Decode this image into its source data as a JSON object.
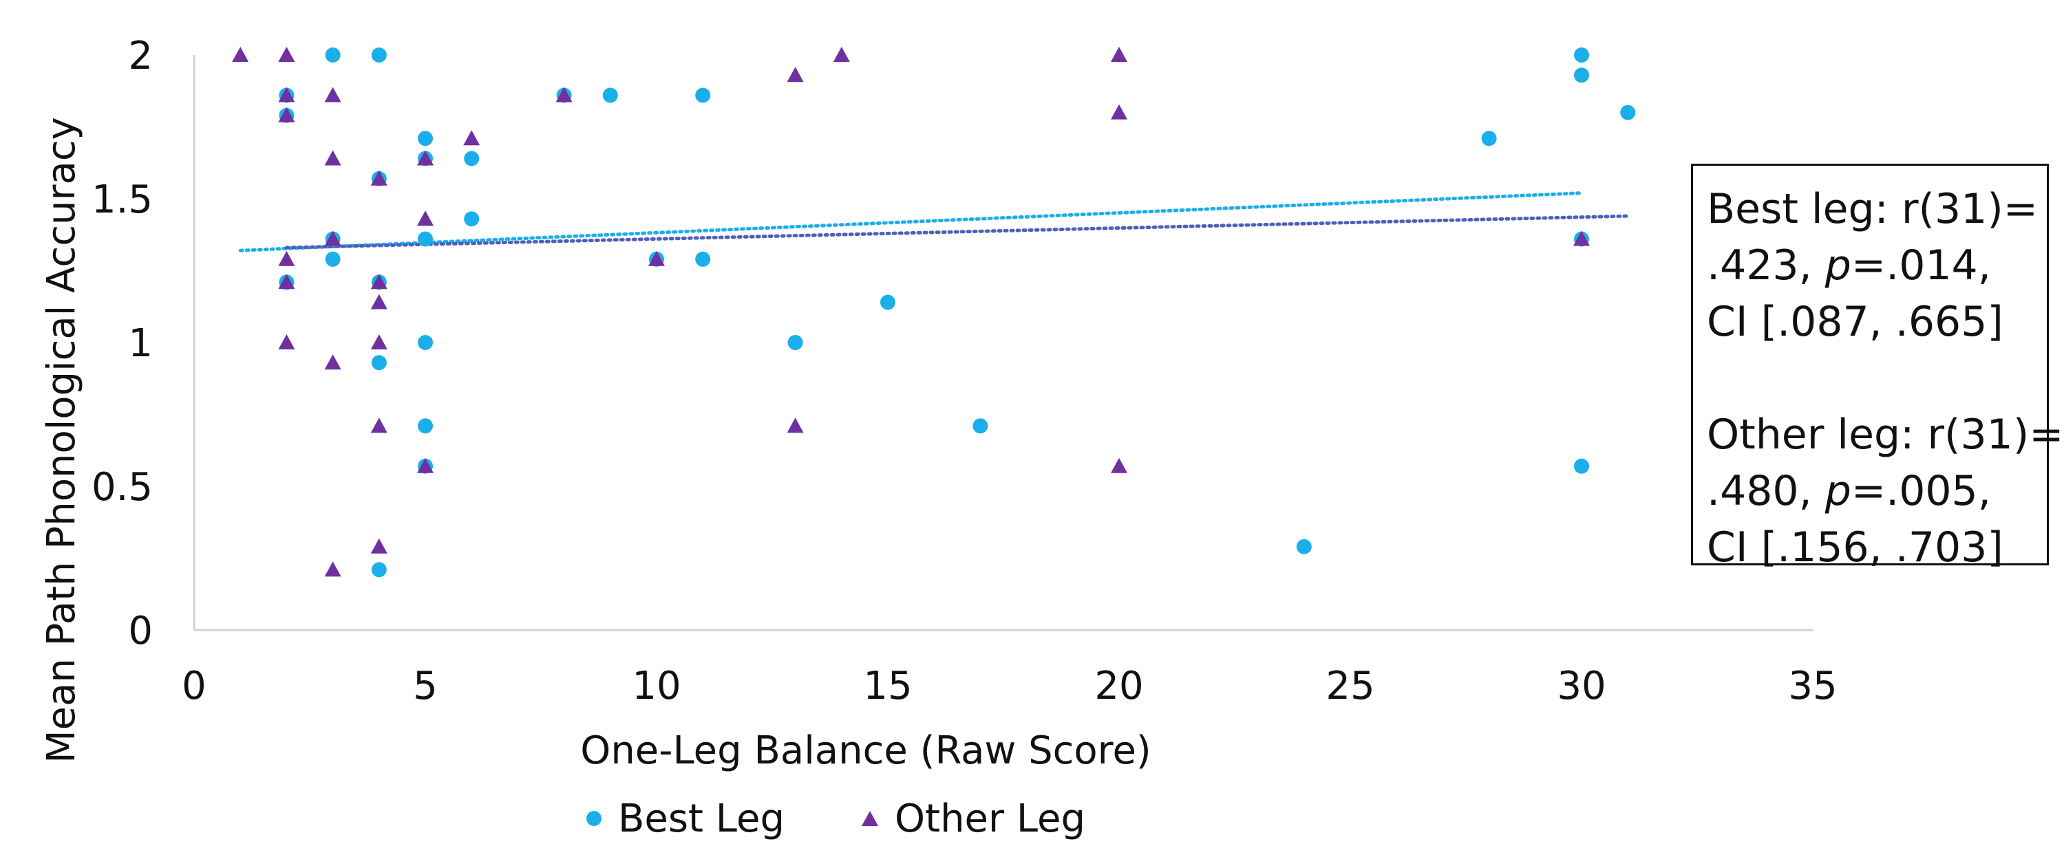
{
  "chart_data": {
    "type": "scatter",
    "xlabel": "One-Leg Balance (Raw Score)",
    "ylabel": "Mean Path Phonological Accuracy",
    "xlim": [
      0,
      35
    ],
    "ylim": [
      0,
      2
    ],
    "xticks": [
      0,
      5,
      10,
      15,
      20,
      25,
      30,
      35
    ],
    "yticks": [
      0,
      0.5,
      1,
      1.5,
      2
    ],
    "ytick_labels": [
      "0",
      "0.5",
      "1",
      "1.5",
      "2"
    ],
    "grid": false,
    "legend_position": "bottom",
    "series": [
      {
        "name": "Best Leg",
        "color": "#1AAFEA",
        "marker": "circle",
        "points": [
          [
            2,
            1.86
          ],
          [
            2,
            1.79
          ],
          [
            2,
            1.21
          ],
          [
            3,
            2.0
          ],
          [
            3,
            1.36
          ],
          [
            3,
            1.29
          ],
          [
            4,
            2.0
          ],
          [
            4,
            1.57
          ],
          [
            4,
            1.21
          ],
          [
            4,
            0.93
          ],
          [
            4,
            0.21
          ],
          [
            5,
            1.71
          ],
          [
            5,
            1.64
          ],
          [
            5,
            1.36
          ],
          [
            5,
            1.0
          ],
          [
            5,
            0.71
          ],
          [
            5,
            0.57
          ],
          [
            6,
            1.64
          ],
          [
            6,
            1.43
          ],
          [
            8,
            1.86
          ],
          [
            9,
            1.86
          ],
          [
            10,
            1.29
          ],
          [
            11,
            1.86
          ],
          [
            11,
            1.29
          ],
          [
            13,
            1.0
          ],
          [
            15,
            1.14
          ],
          [
            17,
            0.71
          ],
          [
            24,
            0.29
          ],
          [
            28,
            1.71
          ],
          [
            30,
            2.0
          ],
          [
            30,
            1.93
          ],
          [
            30,
            1.36
          ],
          [
            30,
            0.57
          ],
          [
            31,
            1.8
          ]
        ],
        "trendline": {
          "x": [
            1,
            30
          ],
          "y": [
            1.32,
            1.52
          ]
        }
      },
      {
        "name": "Other Leg",
        "color": "#7030A0",
        "marker": "triangle",
        "points": [
          [
            1,
            2.0
          ],
          [
            2,
            2.0
          ],
          [
            2,
            1.86
          ],
          [
            2,
            1.79
          ],
          [
            2,
            1.29
          ],
          [
            2,
            1.21
          ],
          [
            2,
            1.0
          ],
          [
            3,
            1.86
          ],
          [
            3,
            1.64
          ],
          [
            3,
            1.36
          ],
          [
            3,
            0.93
          ],
          [
            3,
            0.21
          ],
          [
            4,
            1.57
          ],
          [
            4,
            1.21
          ],
          [
            4,
            1.14
          ],
          [
            4,
            1.0
          ],
          [
            4,
            0.71
          ],
          [
            4,
            0.29
          ],
          [
            5,
            1.64
          ],
          [
            5,
            1.43
          ],
          [
            5,
            0.57
          ],
          [
            6,
            1.71
          ],
          [
            8,
            1.86
          ],
          [
            10,
            1.29
          ],
          [
            13,
            1.93
          ],
          [
            13,
            0.71
          ],
          [
            14,
            2.0
          ],
          [
            20,
            2.0
          ],
          [
            20,
            1.8
          ],
          [
            20,
            0.57
          ],
          [
            30,
            1.36
          ]
        ],
        "trendline": {
          "x": [
            2,
            31
          ],
          "y": [
            1.33,
            1.44
          ]
        }
      }
    ]
  },
  "stats": {
    "best": {
      "line1": "Best leg: r(31)=",
      "line2_pre": ".423, ",
      "line2_p": "p",
      "line2_post": "=.014,",
      "line3": "CI [.087, .665]"
    },
    "other": {
      "line1": "Other leg: r(31)=",
      "line2_pre": ".480, ",
      "line2_p": "p",
      "line2_post": "=.005,",
      "line3": "CI [.156, .703]"
    }
  },
  "legend": {
    "best_label": "Best Leg",
    "other_label": "Other Leg"
  }
}
